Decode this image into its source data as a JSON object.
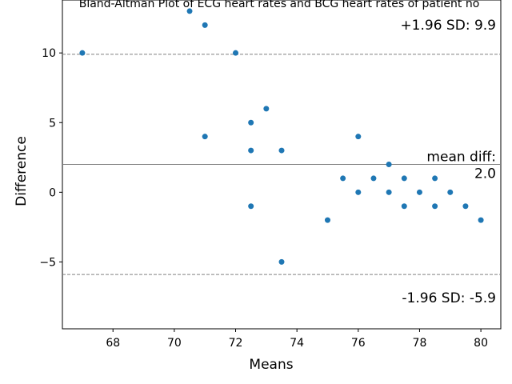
{
  "chart_data": {
    "type": "scatter",
    "title": "Bland-Altman Plot of ECG heart rates and BCG heart rates of patient no",
    "xlabel": "Means",
    "ylabel": "Difference",
    "xlim": [
      66.35,
      80.65
    ],
    "ylim": [
      -9.8,
      13.8
    ],
    "xticks": [
      68,
      70,
      72,
      74,
      76,
      78,
      80
    ],
    "yticks": [
      -5,
      0,
      5,
      10
    ],
    "xtick_labels": [
      "68",
      "70",
      "72",
      "74",
      "76",
      "78",
      "80"
    ],
    "ytick_labels": [
      "−5",
      "0",
      "5",
      "10"
    ],
    "point_color": "#1f77b4",
    "line_color": "#808080",
    "grid": false,
    "points": [
      {
        "x": 67.0,
        "y": 10
      },
      {
        "x": 70.5,
        "y": 13
      },
      {
        "x": 71.0,
        "y": 12
      },
      {
        "x": 71.0,
        "y": 4
      },
      {
        "x": 72.0,
        "y": 10
      },
      {
        "x": 72.5,
        "y": 5
      },
      {
        "x": 72.5,
        "y": 3
      },
      {
        "x": 72.5,
        "y": -1
      },
      {
        "x": 73.0,
        "y": 6
      },
      {
        "x": 73.5,
        "y": 3
      },
      {
        "x": 73.5,
        "y": -5
      },
      {
        "x": 75.0,
        "y": -2
      },
      {
        "x": 75.5,
        "y": 1
      },
      {
        "x": 76.0,
        "y": 4
      },
      {
        "x": 76.0,
        "y": 0
      },
      {
        "x": 76.5,
        "y": 1
      },
      {
        "x": 77.0,
        "y": 2
      },
      {
        "x": 77.0,
        "y": 0
      },
      {
        "x": 77.5,
        "y": 1
      },
      {
        "x": 77.5,
        "y": -1
      },
      {
        "x": 78.0,
        "y": 0
      },
      {
        "x": 78.5,
        "y": 1
      },
      {
        "x": 78.5,
        "y": -1
      },
      {
        "x": 79.0,
        "y": 0
      },
      {
        "x": 79.5,
        "y": -1
      },
      {
        "x": 80.0,
        "y": -2
      }
    ],
    "reference_lines": [
      {
        "name": "upper",
        "y": 9.9,
        "style": "dashed",
        "label": "+1.96 SD: 9.9"
      },
      {
        "name": "mean",
        "y": 2.0,
        "style": "solid",
        "label_line1": "mean diff:",
        "label_line2": "2.0"
      },
      {
        "name": "lower",
        "y": -5.9,
        "style": "dashed",
        "label": "-1.96 SD: -5.9"
      }
    ]
  }
}
